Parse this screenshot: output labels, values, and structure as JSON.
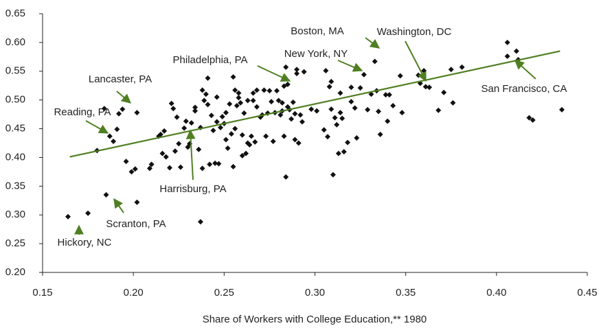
{
  "chart_data": {
    "type": "scatter",
    "xlabel": "Share of Workers with College Education,** 1980",
    "xlim": [
      0.15,
      0.45
    ],
    "xticks": [
      0.15,
      {
        "value": 0.2,
        "label": "0.20"
      },
      0.25,
      {
        "value": 0.3,
        "label": "0.30"
      },
      0.35,
      {
        "value": 0.4,
        "label": "0.40"
      },
      0.45
    ],
    "ylim": [
      0.2,
      0.65
    ],
    "yticks": [
      {
        "value": 0.2,
        "label": "0.20"
      },
      0.25,
      {
        "value": 0.3,
        "label": "0.30"
      },
      0.35,
      {
        "value": 0.4,
        "label": "0.40"
      },
      0.45,
      {
        "value": 0.5,
        "label": "0.50"
      },
      0.55,
      {
        "value": 0.6,
        "label": "0.60"
      },
      0.65
    ],
    "color": "#111111",
    "x": [
      0.164,
      0.175,
      0.18,
      0.184,
      0.185,
      0.187,
      0.189,
      0.191,
      0.192,
      0.194,
      0.196,
      0.199,
      0.201,
      0.202,
      0.202,
      0.209,
      0.21,
      0.214,
      0.215,
      0.216,
      0.217,
      0.218,
      0.22,
      0.221,
      0.222,
      0.223,
      0.224,
      0.225,
      0.226,
      0.228,
      0.229,
      0.23,
      0.231,
      0.232,
      0.234,
      0.234,
      0.236,
      0.237,
      0.237,
      0.238,
      0.238,
      0.239,
      0.24,
      0.241,
      0.241,
      0.242,
      0.243,
      0.244,
      0.245,
      0.246,
      0.246,
      0.247,
      0.248,
      0.249,
      0.25,
      0.251,
      0.251,
      0.252,
      0.253,
      0.254,
      0.255,
      0.255,
      0.256,
      0.256,
      0.257,
      0.258,
      0.258,
      0.259,
      0.26,
      0.26,
      0.261,
      0.262,
      0.263,
      0.263,
      0.264,
      0.265,
      0.266,
      0.266,
      0.267,
      0.268,
      0.268,
      0.27,
      0.271,
      0.272,
      0.273,
      0.274,
      0.275,
      0.276,
      0.277,
      0.278,
      0.279,
      0.28,
      0.281,
      0.282,
      0.282,
      0.283,
      0.283,
      0.284,
      0.284,
      0.285,
      0.285,
      0.286,
      0.287,
      0.288,
      0.289,
      0.289,
      0.29,
      0.29,
      0.291,
      0.292,
      0.293,
      0.294,
      0.298,
      0.301,
      0.305,
      0.306,
      0.307,
      0.308,
      0.309,
      0.309,
      0.31,
      0.311,
      0.312,
      0.313,
      0.314,
      0.314,
      0.315,
      0.316,
      0.318,
      0.32,
      0.32,
      0.322,
      0.323,
      0.325,
      0.327,
      0.329,
      0.331,
      0.333,
      0.334,
      0.335,
      0.336,
      0.339,
      0.34,
      0.341,
      0.343,
      0.347,
      0.348,
      0.357,
      0.358,
      0.36,
      0.361,
      0.363,
      0.368,
      0.371,
      0.375,
      0.376,
      0.381,
      0.406,
      0.406,
      0.411,
      0.412,
      0.418,
      0.42,
      0.436
    ],
    "values": [
      0.297,
      0.303,
      0.412,
      0.485,
      0.335,
      0.437,
      0.428,
      0.449,
      0.476,
      0.484,
      0.393,
      0.375,
      0.38,
      0.478,
      0.322,
      0.381,
      0.388,
      0.437,
      0.44,
      0.407,
      0.446,
      0.401,
      0.382,
      0.494,
      0.485,
      0.411,
      0.47,
      0.424,
      0.383,
      0.451,
      0.463,
      0.418,
      0.424,
      0.46,
      0.487,
      0.481,
      0.414,
      0.288,
      0.452,
      0.517,
      0.381,
      0.499,
      0.51,
      0.492,
      0.538,
      0.388,
      0.473,
      0.447,
      0.39,
      0.505,
      0.462,
      0.389,
      0.452,
      0.471,
      0.459,
      0.478,
      0.431,
      0.416,
      0.493,
      0.441,
      0.54,
      0.384,
      0.517,
      0.45,
      0.49,
      0.512,
      0.504,
      0.495,
      0.439,
      0.403,
      0.477,
      0.407,
      0.425,
      0.499,
      0.422,
      0.437,
      0.512,
      0.499,
      0.427,
      0.488,
      0.517,
      0.47,
      0.474,
      0.517,
      0.437,
      0.477,
      0.516,
      0.497,
      0.428,
      0.478,
      0.516,
      0.499,
      0.474,
      0.495,
      0.481,
      0.437,
      0.524,
      0.557,
      0.366,
      0.527,
      0.488,
      0.483,
      0.467,
      0.496,
      0.476,
      0.431,
      0.553,
      0.546,
      0.425,
      0.474,
      0.462,
      0.549,
      0.484,
      0.481,
      0.448,
      0.551,
      0.436,
      0.523,
      0.484,
      0.532,
      0.37,
      0.469,
      0.457,
      0.407,
      0.478,
      0.512,
      0.468,
      0.41,
      0.426,
      0.497,
      0.522,
      0.486,
      0.434,
      0.521,
      0.544,
      0.483,
      0.51,
      0.567,
      0.516,
      0.48,
      0.44,
      0.509,
      0.463,
      0.509,
      0.49,
      0.542,
      0.478,
      0.543,
      0.529,
      0.551,
      0.523,
      0.522,
      0.482,
      0.513,
      0.553,
      0.495,
      0.557,
      0.6,
      0.576,
      0.585,
      0.57,
      0.469,
      0.465,
      0.483
    ],
    "trend": {
      "color": "#4f7f22",
      "x": [
        0.165,
        0.435
      ],
      "values": [
        0.401,
        0.585
      ]
    },
    "annotations": [
      "Boston, MA",
      "Washington, DC",
      "New York, NY",
      "Philadelphia, PA",
      "Lancaster, PA",
      "Reading, PA",
      "San Francisco, CA",
      "Harrisburg, PA",
      "Scranton, PA",
      "Hickory, NC"
    ]
  }
}
